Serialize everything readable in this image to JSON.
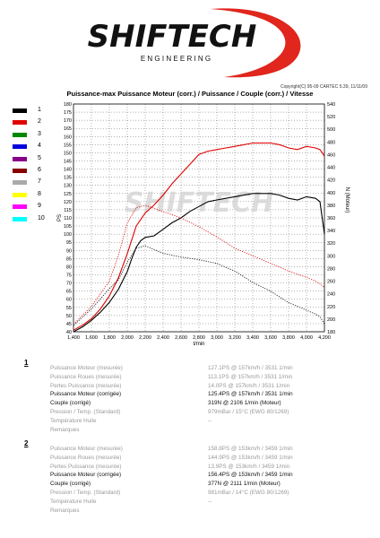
{
  "header": {
    "brand": "SHIFTECH",
    "tagline": "E N G I N E E R I N G",
    "colors": {
      "brand_text": "#111111",
      "swoosh": "#e0261d"
    }
  },
  "copyright": "Copyright(C) 95-09 CARTEC 5.39, 11/11/09",
  "legend": {
    "numbers": [
      "1",
      "2",
      "3",
      "4",
      "5",
      "6",
      "7",
      "8",
      "9",
      "10"
    ],
    "colors": [
      "#000000",
      "#e00000",
      "#008800",
      "#0000dd",
      "#880088",
      "#880000",
      "#aaaaaa",
      "#ffff00",
      "#ff00ff",
      "#00ffff"
    ]
  },
  "chart_data": {
    "type": "line",
    "title": "Puissance-max Puissance Moteur (corr.) / Puissance / Couple (corr.) / Vitesse",
    "xlabel": "t/min",
    "ylabel_left": "PS",
    "ylabel_right": "N (Moteur)",
    "xlim": [
      1400,
      4200
    ],
    "ylim_left": [
      40,
      180
    ],
    "ylim_right": [
      180,
      540
    ],
    "x_ticks": [
      "1,400",
      "1,600",
      "1,800",
      "2,000",
      "2,200",
      "2,400",
      "2,600",
      "2,800",
      "3,000",
      "3,200",
      "3,400",
      "3,600",
      "3,800",
      "4,000",
      "4,200"
    ],
    "y_left_ticks": [
      "40",
      "45",
      "50",
      "55",
      "60",
      "65",
      "70",
      "75",
      "80",
      "85",
      "90",
      "95",
      "100",
      "105",
      "110",
      "115",
      "120",
      "125",
      "130",
      "135",
      "140",
      "145",
      "150",
      "155",
      "160",
      "165",
      "170",
      "175",
      "180"
    ],
    "y_right_ticks": [
      "180",
      "200",
      "220",
      "240",
      "260",
      "280",
      "300",
      "320",
      "340",
      "360",
      "380",
      "400",
      "420",
      "440",
      "460",
      "480",
      "500",
      "520",
      "540"
    ],
    "grid": true,
    "watermark": "SHIFTECH",
    "series": [
      {
        "name": "1",
        "axis": "left",
        "style": "solid",
        "color": "#000000",
        "x": [
          1400,
          1500,
          1600,
          1700,
          1800,
          1900,
          2000,
          2050,
          2100,
          2150,
          2200,
          2300,
          2400,
          2500,
          2600,
          2700,
          2800,
          2900,
          3000,
          3100,
          3200,
          3300,
          3400,
          3500,
          3600,
          3700,
          3800,
          3900,
          4000,
          4100,
          4150,
          4200
        ],
        "y": [
          40,
          43,
          47,
          52,
          58,
          66,
          77,
          85,
          92,
          96,
          98,
          99,
          103,
          107,
          110,
          114,
          117,
          120,
          121,
          122,
          123,
          124,
          125,
          125,
          125,
          124,
          122,
          121,
          123,
          122,
          120,
          100
        ]
      },
      {
        "name": "2",
        "axis": "left",
        "style": "solid",
        "color": "#e00000",
        "x": [
          1400,
          1500,
          1600,
          1700,
          1800,
          1900,
          2000,
          2100,
          2200,
          2300,
          2400,
          2500,
          2600,
          2700,
          2800,
          2900,
          3000,
          3100,
          3200,
          3300,
          3400,
          3500,
          3600,
          3700,
          3800,
          3900,
          4000,
          4100,
          4150,
          4200
        ],
        "y": [
          41,
          44,
          48,
          54,
          62,
          73,
          88,
          105,
          113,
          118,
          124,
          131,
          137,
          143,
          149,
          151,
          152,
          153,
          154,
          155,
          156,
          156,
          156,
          155,
          153,
          152,
          154,
          153,
          152,
          148
        ]
      },
      {
        "name": "1",
        "axis": "right",
        "style": "dotted",
        "color": "#000000",
        "x": [
          1400,
          1600,
          1800,
          1900,
          2000,
          2100,
          2200,
          2400,
          2600,
          2800,
          3000,
          3200,
          3400,
          3600,
          3800,
          4000,
          4100,
          4150,
          4200
        ],
        "y": [
          190,
          216,
          248,
          262,
          290,
          312,
          316,
          304,
          298,
          294,
          288,
          276,
          258,
          244,
          226,
          214,
          208,
          204,
          192
        ]
      },
      {
        "name": "2",
        "axis": "right",
        "style": "dotted",
        "color": "#e00000",
        "x": [
          1400,
          1600,
          1800,
          1900,
          2000,
          2100,
          2200,
          2400,
          2600,
          2800,
          3000,
          3200,
          3400,
          3600,
          3800,
          4000,
          4100,
          4150,
          4200
        ],
        "y": [
          192,
          220,
          260,
          300,
          352,
          376,
          380,
          370,
          360,
          346,
          330,
          312,
          300,
          288,
          276,
          266,
          260,
          256,
          250
        ]
      }
    ]
  },
  "results": [
    {
      "number": "1",
      "rows": [
        {
          "label": "Puissance Moteur (mesurée)",
          "value": "127.1PS @ 157km/h / 3531 1/min",
          "emph": false
        },
        {
          "label": "Puissance Roues (mesurée)",
          "value": "113.1PS @ 157km/h / 3531 1/min",
          "emph": false
        },
        {
          "label": "Pertes Puissance (mesurée)",
          "value": "14.0PS @ 157km/h / 3531 1/min",
          "emph": false
        },
        {
          "label": "Puissance Moteur (corrigée)",
          "value": "125.4PS @ 157km/h / 3531 1/min",
          "emph": true
        },
        {
          "label": "Couple (corrigé)",
          "value": "319N @ 2106 1/min (Moteur)",
          "emph": true
        },
        {
          "label": "Pression / Temp. (Standard)",
          "value": "979mBar / 15°C    (EWG 80/1269)",
          "emph": false
        },
        {
          "label": "Température Huile",
          "value": "--",
          "emph": false
        },
        {
          "label": "Remarques",
          "value": "",
          "emph": false
        }
      ]
    },
    {
      "number": "2",
      "rows": [
        {
          "label": "Puissance Moteur (mesurée)",
          "value": "158.8PS @ 153km/h / 3459 1/min",
          "emph": false
        },
        {
          "label": "Puissance Roues (mesurée)",
          "value": "144.9PS @ 153km/h / 3459 1/min",
          "emph": false
        },
        {
          "label": "Pertes Puissance (mesurée)",
          "value": "13.9PS @ 153km/h / 3459 1/min",
          "emph": false
        },
        {
          "label": "Puissance Moteur (corrigée)",
          "value": "156.4PS @ 153km/h / 3459 1/min",
          "emph": true
        },
        {
          "label": "Couple (corrigé)",
          "value": "377N @ 2111 1/min (Moteur)",
          "emph": true
        },
        {
          "label": "Pression / Temp. (Standard)",
          "value": "981mBar / 14°C    (EWG 80/1269)",
          "emph": false
        },
        {
          "label": "Température Huile",
          "value": "--",
          "emph": false
        },
        {
          "label": "Remarques",
          "value": "",
          "emph": false
        }
      ]
    }
  ]
}
